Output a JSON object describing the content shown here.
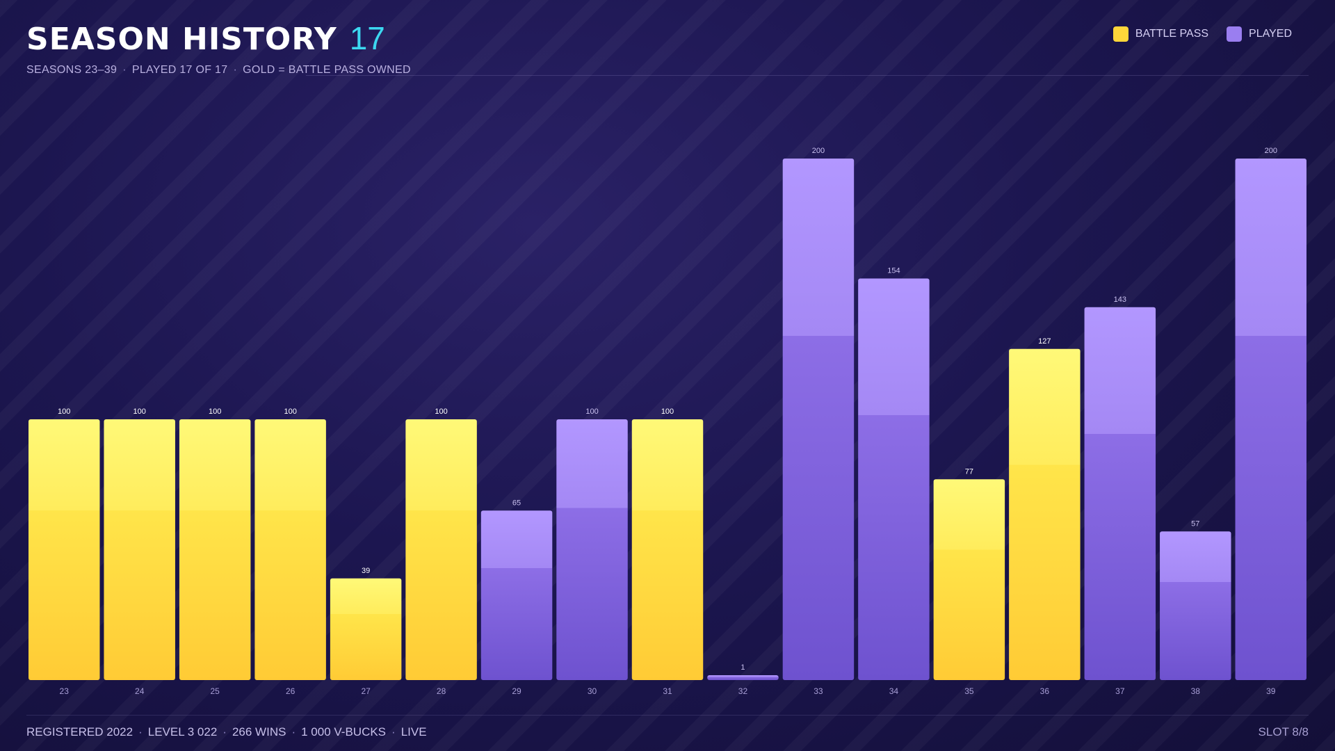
{
  "header": {
    "title": "SEASON HISTORY",
    "count": "17",
    "subtitle_range": "SEASONS 23–39",
    "subtitle_played": "PLAYED 17 OF 17",
    "subtitle_note": "GOLD = BATTLE PASS OWNED",
    "separator": "·"
  },
  "legend": {
    "battle_pass": "BATTLE PASS",
    "played": "PLAYED",
    "battle_pass_color": "#ffd63a",
    "played_color": "#9a7ef0"
  },
  "footer": {
    "registered": "REGISTERED 2022",
    "level": "LEVEL 3 022",
    "wins": "266 WINS",
    "vbucks": "1 000 V-BUCKS",
    "status": "LIVE",
    "slot": "SLOT 8/8"
  },
  "chart_data": {
    "type": "bar",
    "categories": [
      "23",
      "24",
      "25",
      "26",
      "27",
      "28",
      "29",
      "30",
      "31",
      "32",
      "33",
      "34",
      "35",
      "36",
      "37",
      "38",
      "39"
    ],
    "values": [
      100,
      100,
      100,
      100,
      39,
      100,
      65,
      100,
      100,
      1,
      200,
      154,
      77,
      127,
      143,
      57,
      200
    ],
    "battle_pass": [
      true,
      true,
      true,
      true,
      true,
      true,
      false,
      false,
      true,
      false,
      false,
      false,
      true,
      true,
      false,
      false,
      false
    ],
    "ylim": [
      0,
      200
    ],
    "grid": false,
    "legend_position": "top-right"
  }
}
